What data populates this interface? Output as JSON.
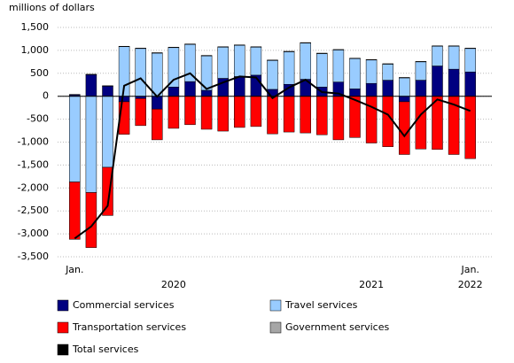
{
  "chart_data": {
    "type": "bar",
    "y_axis_label": "millions of dollars",
    "categories": [
      "Jan.",
      null,
      null,
      null,
      null,
      null,
      null,
      null,
      null,
      null,
      null,
      null,
      null,
      null,
      null,
      null,
      null,
      null,
      null,
      null,
      null,
      null,
      null,
      null,
      "Jan."
    ],
    "year_labels": [
      "2020",
      "2021",
      "2022"
    ],
    "stacked": true,
    "grid": true,
    "ylim": [
      -3500,
      1500
    ],
    "yticks": [
      {
        "value": -3500,
        "label": "-3,500"
      },
      {
        "value": -3000,
        "label": "-3,000"
      },
      {
        "value": -2500,
        "label": "-2,500"
      },
      {
        "value": -2000,
        "label": "-2,000"
      },
      {
        "value": -1500,
        "label": "-1,500"
      },
      {
        "value": -1000,
        "label": "-1,000"
      },
      -500,
      0,
      500,
      {
        "value": 1000,
        "label": "1,000"
      },
      {
        "value": 1500,
        "label": "1,500"
      }
    ],
    "series": [
      {
        "name": "Commercial services",
        "color": "#000080",
        "values": [
          30,
          470,
          220,
          -120,
          -50,
          -280,
          200,
          320,
          130,
          390,
          430,
          460,
          150,
          260,
          370,
          200,
          310,
          160,
          280,
          350,
          -120,
          350,
          660,
          590,
          530
        ]
      },
      {
        "name": "Travel services",
        "color": "#99ccff",
        "values": [
          -1870,
          -2100,
          -1550,
          1080,
          1040,
          940,
          860,
          810,
          750,
          680,
          680,
          610,
          630,
          710,
          790,
          730,
          700,
          660,
          510,
          350,
          400,
          400,
          430,
          500,
          510
        ]
      },
      {
        "name": "Transportation services",
        "color": "#ff0000",
        "values": [
          -1250,
          -1200,
          -1050,
          -710,
          -590,
          -670,
          -700,
          -620,
          -720,
          -760,
          -680,
          -660,
          -820,
          -780,
          -800,
          -840,
          -950,
          -900,
          -1020,
          -1100,
          -1150,
          -1150,
          -1160,
          -1270,
          -1360
        ]
      },
      {
        "name": "Government services",
        "color": "#a6a6a6",
        "values": [
          10,
          10,
          10,
          10,
          10,
          10,
          10,
          10,
          10,
          10,
          10,
          10,
          10,
          10,
          10,
          10,
          10,
          10,
          10,
          10,
          10,
          10,
          10,
          10,
          10
        ]
      },
      {
        "name": "Total services",
        "color": "#000000",
        "type": "line",
        "values": [
          -3100,
          -2840,
          -2390,
          230,
          390,
          -10,
          360,
          500,
          160,
          300,
          430,
          410,
          -40,
          190,
          360,
          90,
          60,
          -80,
          -230,
          -400,
          -870,
          -400,
          -70,
          -180,
          -320
        ]
      }
    ]
  }
}
